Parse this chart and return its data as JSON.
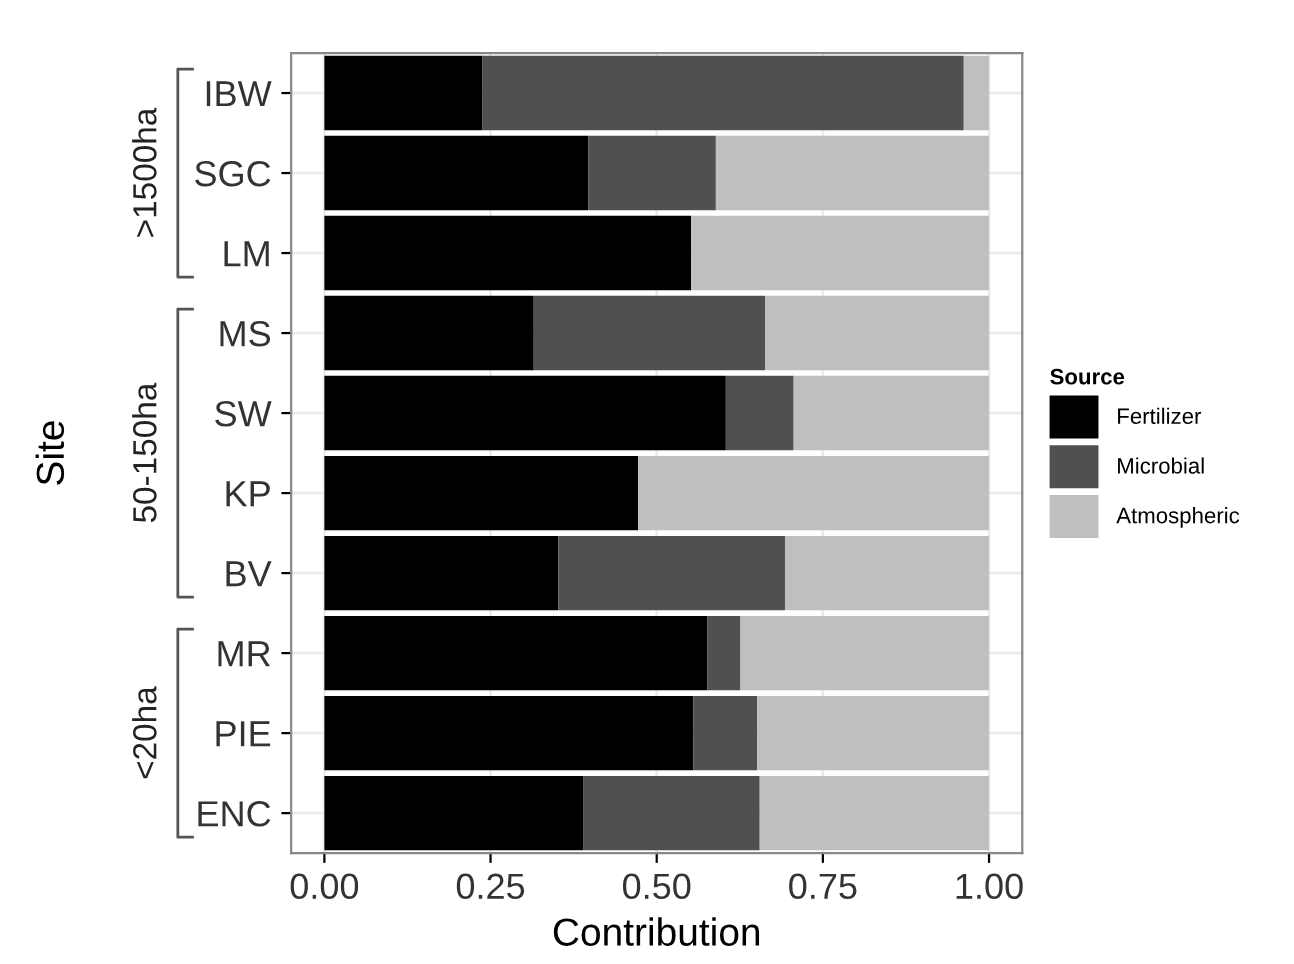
{
  "chart_data": {
    "type": "bar",
    "orientation": "horizontal",
    "stacked": true,
    "xlabel": "Contribution",
    "ylabel": "Site",
    "legend_title": "Source",
    "legend": "right",
    "grid": true,
    "categories": [
      "IBW",
      "SGC",
      "LM",
      "MS",
      "SW",
      "KP",
      "BV",
      "MR",
      "PIE",
      "ENC"
    ],
    "series": [
      {
        "name": "Fertilizer",
        "color": "#000000",
        "values": [
          0.238,
          0.397,
          0.552,
          0.315,
          0.604,
          0.472,
          0.352,
          0.576,
          0.555,
          0.39
        ]
      },
      {
        "name": "Microbial",
        "color": "#505050",
        "values": [
          0.724,
          0.192,
          0,
          0.348,
          0.102,
          0,
          0.341,
          0.05,
          0.096,
          0.265
        ]
      },
      {
        "name": "Atmospheric",
        "color": "#bfbfbf",
        "values": [
          0.038,
          0.411,
          0.448,
          0.337,
          0.294,
          0.528,
          0.307,
          0.374,
          0.349,
          0.345
        ]
      }
    ],
    "xlim": [
      -0.05,
      1.05
    ],
    "xticks": [
      {
        "value": 0,
        "label": "0.00"
      },
      {
        "value": 0.25,
        "label": "0.25"
      },
      {
        "value": 0.5,
        "label": "0.50"
      },
      {
        "value": 0.75,
        "label": "0.75"
      },
      {
        "value": 1,
        "label": "1.00"
      }
    ],
    "annotations": [
      ">1500ha",
      "50-150ha",
      "<20ha"
    ]
  }
}
